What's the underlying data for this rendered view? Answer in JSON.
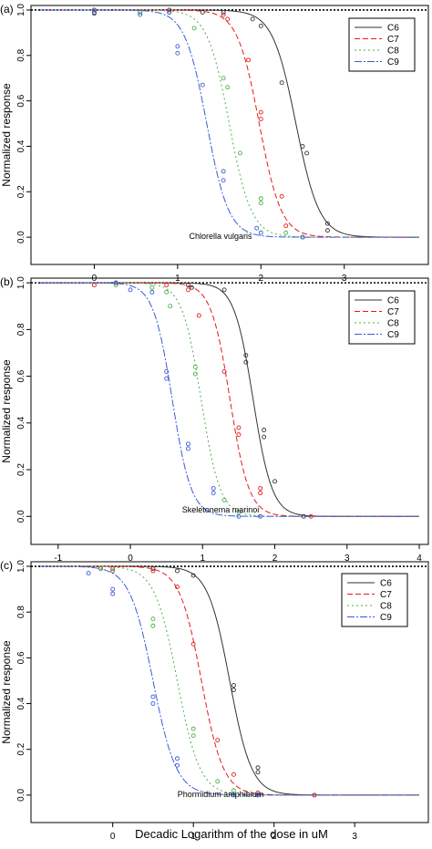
{
  "xlabel": "Decadic Logarithm of the dose in uM",
  "chart_data": [
    {
      "type": "line",
      "panel_label": "(a)",
      "annotation": "Chlorella vulgaris",
      "xlabel": "",
      "ylabel": "Normalized response",
      "xlim": [
        -0.65,
        3.9
      ],
      "ylim": [
        -0.12,
        1.02
      ],
      "xticks": [
        0,
        1,
        2,
        3
      ],
      "yticks": [
        0.0,
        0.2,
        0.4,
        0.6,
        0.8,
        1.0
      ],
      "reference_line": 1.0,
      "legend_position": "top-right",
      "series": [
        {
          "name": "C6",
          "color": "#333333",
          "dash": "solid",
          "ec50": 2.42,
          "slope": 3.1,
          "points": [
            [
              0,
              0.985
            ],
            [
              0,
              1.0
            ],
            [
              0.55,
              0.99
            ],
            [
              0.9,
              1.0
            ],
            [
              1.3,
              0.99
            ],
            [
              1.55,
              0.99
            ],
            [
              1.9,
              0.96
            ],
            [
              2.0,
              0.93
            ],
            [
              2.25,
              0.68
            ],
            [
              2.5,
              0.4
            ],
            [
              2.55,
              0.37
            ],
            [
              2.8,
              0.06
            ],
            [
              2.8,
              0.03
            ]
          ]
        },
        {
          "name": "C7",
          "color": "#e41a1c",
          "dash": "6,3",
          "ec50": 1.98,
          "slope": 3.3,
          "points": [
            [
              0,
              0.99
            ],
            [
              0.9,
              0.99
            ],
            [
              1.55,
              0.98
            ],
            [
              1.6,
              0.96
            ],
            [
              1.85,
              0.78
            ],
            [
              2.0,
              0.55
            ],
            [
              2.0,
              0.52
            ],
            [
              2.25,
              0.18
            ],
            [
              2.3,
              0.05
            ],
            [
              2.5,
              0.0
            ]
          ]
        },
        {
          "name": "C8",
          "color": "#4daf4a",
          "dash": "2,3",
          "ec50": 1.62,
          "slope": 3.3,
          "points": [
            [
              0,
              0.99
            ],
            [
              0.55,
              0.99
            ],
            [
              0.9,
              0.99
            ],
            [
              1.2,
              0.92
            ],
            [
              1.55,
              0.7
            ],
            [
              1.6,
              0.66
            ],
            [
              1.75,
              0.37
            ],
            [
              2.0,
              0.17
            ],
            [
              2.0,
              0.15
            ],
            [
              2.3,
              0.02
            ],
            [
              2.5,
              0.0
            ]
          ]
        },
        {
          "name": "C9",
          "color": "#3a5bd9",
          "dash": "8,2,2,2",
          "ec50": 1.35,
          "slope": 3.3,
          "points": [
            [
              0,
              0.99
            ],
            [
              0.55,
              0.98
            ],
            [
              0.9,
              0.99
            ],
            [
              1.0,
              0.84
            ],
            [
              1.0,
              0.81
            ],
            [
              1.3,
              0.67
            ],
            [
              1.55,
              0.29
            ],
            [
              1.55,
              0.25
            ],
            [
              1.95,
              0.04
            ],
            [
              2.0,
              0.02
            ],
            [
              2.5,
              0.0
            ]
          ]
        }
      ]
    },
    {
      "type": "line",
      "panel_label": "(b)",
      "annotation": "Skeletonema marinoi",
      "xlabel": "",
      "ylabel": "Normalized response",
      "xlim": [
        -1.25,
        4.0
      ],
      "ylim": [
        -0.12,
        1.02
      ],
      "xticks": [
        -1,
        0,
        1,
        2,
        3,
        4
      ],
      "yticks": [
        0.0,
        0.2,
        0.4,
        0.6,
        0.8,
        1.0
      ],
      "reference_line": 1.0,
      "legend_position": "top-right",
      "series": [
        {
          "name": "C6",
          "color": "#333333",
          "dash": "solid",
          "ec50": 1.7,
          "slope": 3.3,
          "points": [
            [
              -0.2,
              1.0
            ],
            [
              0.8,
              0.99
            ],
            [
              0.85,
              0.98
            ],
            [
              1.3,
              0.97
            ],
            [
              1.6,
              0.69
            ],
            [
              1.6,
              0.66
            ],
            [
              1.85,
              0.37
            ],
            [
              1.85,
              0.34
            ],
            [
              2.0,
              0.15
            ],
            [
              2.4,
              0.0
            ]
          ]
        },
        {
          "name": "C7",
          "color": "#e41a1c",
          "dash": "6,3",
          "ec50": 1.38,
          "slope": 3.3,
          "points": [
            [
              -0.5,
              0.99
            ],
            [
              0.5,
              0.99
            ],
            [
              0.8,
              0.97
            ],
            [
              0.95,
              0.86
            ],
            [
              1.3,
              0.62
            ],
            [
              1.5,
              0.38
            ],
            [
              1.5,
              0.35
            ],
            [
              1.8,
              0.12
            ],
            [
              1.8,
              0.1
            ],
            [
              2.5,
              0.0
            ]
          ]
        },
        {
          "name": "C8",
          "color": "#4daf4a",
          "dash": "2,3",
          "ec50": 0.98,
          "slope": 3.3,
          "points": [
            [
              -0.2,
              0.99
            ],
            [
              0.3,
              0.98
            ],
            [
              0.5,
              0.96
            ],
            [
              0.55,
              0.9
            ],
            [
              0.9,
              0.64
            ],
            [
              0.9,
              0.61
            ],
            [
              1.3,
              0.07
            ],
            [
              1.5,
              0.02
            ],
            [
              1.8,
              0.0
            ]
          ]
        },
        {
          "name": "C9",
          "color": "#3a5bd9",
          "dash": "8,2,2,2",
          "ec50": 0.58,
          "slope": 3.3,
          "points": [
            [
              -0.2,
              1.0
            ],
            [
              0,
              0.97
            ],
            [
              0.3,
              0.96
            ],
            [
              0.5,
              0.62
            ],
            [
              0.5,
              0.59
            ],
            [
              0.8,
              0.31
            ],
            [
              0.8,
              0.29
            ],
            [
              1.15,
              0.12
            ],
            [
              1.15,
              0.1
            ],
            [
              1.5,
              0.0
            ],
            [
              1.8,
              0.0
            ]
          ]
        }
      ]
    },
    {
      "type": "line",
      "panel_label": "(c)",
      "annotation": "Phormidium amphibium",
      "xlabel": "",
      "ylabel": "Normalized response",
      "xlim": [
        -0.9,
        3.8
      ],
      "ylim": [
        -0.12,
        1.02
      ],
      "xticks": [
        0,
        1,
        2,
        3
      ],
      "yticks": [
        0.0,
        0.2,
        0.4,
        0.6,
        0.8,
        1.0
      ],
      "reference_line": 1.0,
      "legend_position": "top-right",
      "series": [
        {
          "name": "C6",
          "color": "#333333",
          "dash": "solid",
          "ec50": 1.45,
          "slope": 3.2,
          "points": [
            [
              -0.15,
              0.99
            ],
            [
              0,
              0.98
            ],
            [
              0.5,
              0.99
            ],
            [
              0.8,
              0.98
            ],
            [
              1.0,
              0.96
            ],
            [
              1.5,
              0.48
            ],
            [
              1.5,
              0.46
            ],
            [
              1.8,
              0.12
            ],
            [
              1.8,
              0.1
            ],
            [
              2.5,
              0.0
            ]
          ]
        },
        {
          "name": "C7",
          "color": "#e41a1c",
          "dash": "6,3",
          "ec50": 1.1,
          "slope": 3.2,
          "points": [
            [
              -0.15,
              0.99
            ],
            [
              0,
              0.99
            ],
            [
              0.5,
              0.98
            ],
            [
              0.8,
              0.91
            ],
            [
              1.0,
              0.66
            ],
            [
              1.3,
              0.24
            ],
            [
              1.5,
              0.09
            ],
            [
              1.8,
              0.01
            ],
            [
              2.5,
              0.0
            ]
          ]
        },
        {
          "name": "C8",
          "color": "#4daf4a",
          "dash": "2,3",
          "ec50": 0.8,
          "slope": 3.1,
          "points": [
            [
              -0.15,
              0.99
            ],
            [
              0,
              0.98
            ],
            [
              0.5,
              0.77
            ],
            [
              0.5,
              0.74
            ],
            [
              1.0,
              0.29
            ],
            [
              1.0,
              0.26
            ],
            [
              1.3,
              0.06
            ],
            [
              1.5,
              0.02
            ]
          ]
        },
        {
          "name": "C9",
          "color": "#3a5bd9",
          "dash": "8,2,2,2",
          "ec50": 0.5,
          "slope": 3.0,
          "points": [
            [
              -0.3,
              0.97
            ],
            [
              0,
              0.9
            ],
            [
              0,
              0.88
            ],
            [
              0.5,
              0.43
            ],
            [
              0.5,
              0.4
            ],
            [
              0.8,
              0.16
            ],
            [
              0.8,
              0.13
            ],
            [
              1.5,
              0.0
            ],
            [
              1.8,
              0.0
            ]
          ]
        }
      ]
    }
  ]
}
